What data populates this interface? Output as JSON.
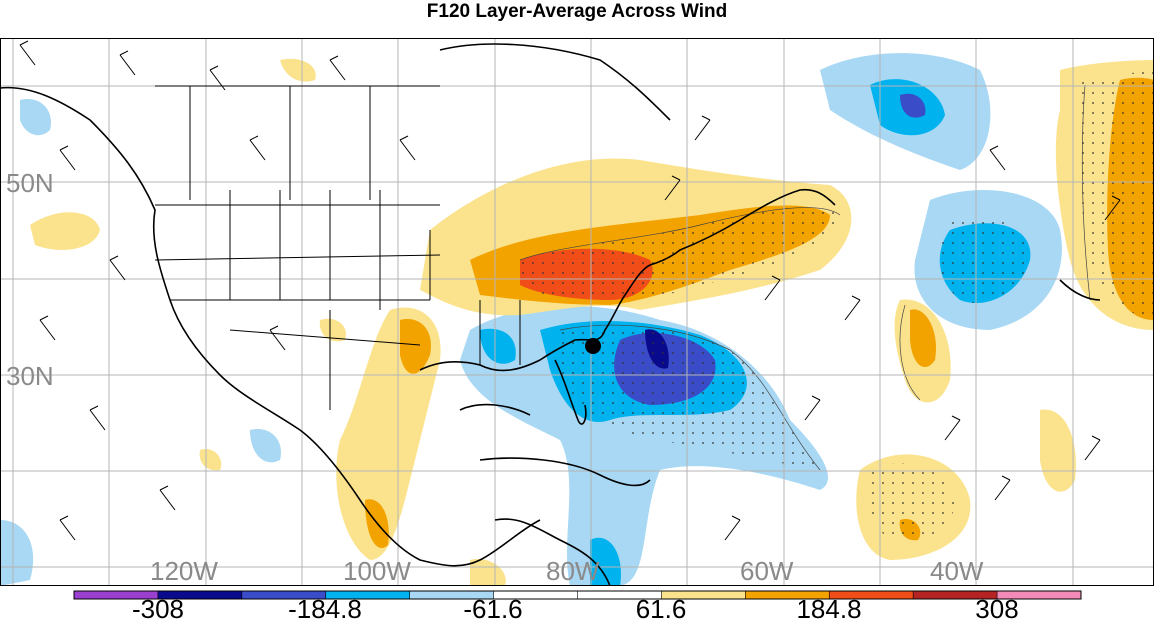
{
  "title": "F120 Layer-Average Across Wind",
  "latitude_labels": [
    "50N",
    "30N"
  ],
  "longitude_labels": [
    "120W",
    "100W",
    "80W",
    "60W",
    "40W"
  ],
  "colorbar": {
    "colors": [
      "#9a3fd0",
      "#0a0a8c",
      "#3a4cc8",
      "#00b2ee",
      "#a8d8f4",
      "#ffffff",
      "#ffffff",
      "#fbe38e",
      "#f3a300",
      "#f04d18",
      "#b42424",
      "#f28ab7"
    ],
    "labels": [
      "-308",
      "-184.8",
      "-61.6",
      "61.6",
      "184.8",
      "308"
    ]
  },
  "marker": {
    "name": "storm-center",
    "color": "#000000"
  }
}
